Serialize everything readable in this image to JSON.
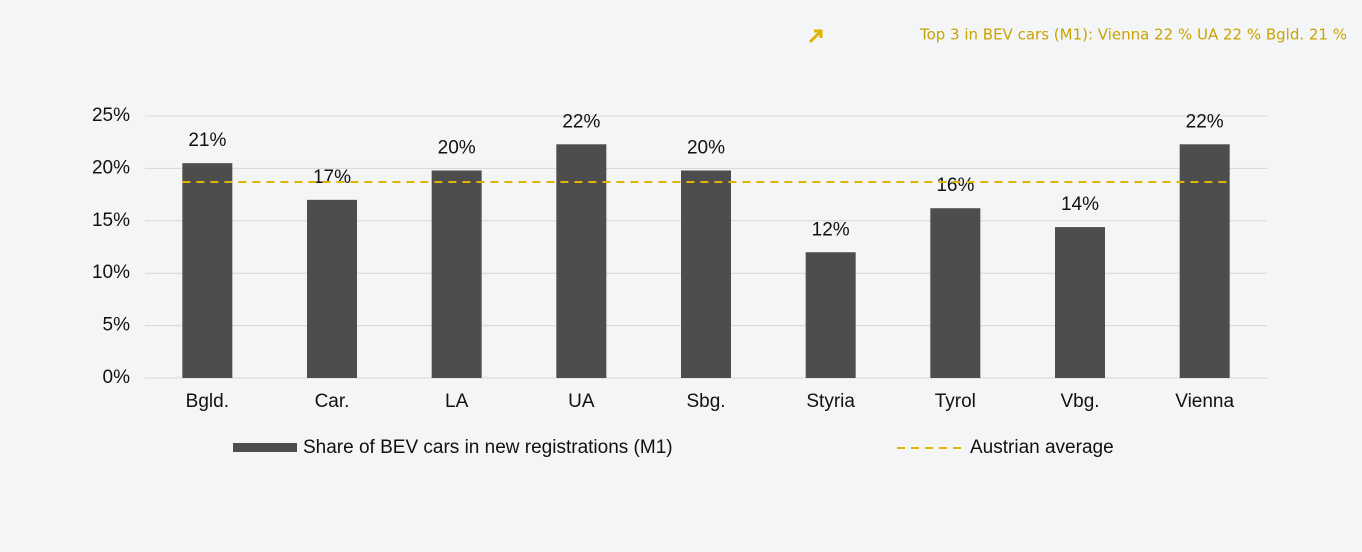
{
  "chart_data": {
    "type": "bar",
    "annotation": "Top 3 in BEV cars (M1): Vienna 22 % UA 22 % Bgld. 21 %",
    "categories": [
      "Bgld.",
      "Car.",
      "LA",
      "UA",
      "Sbg.",
      "Styria",
      "Tyrol",
      "Vbg.",
      "Vienna"
    ],
    "series": [
      {
        "name": "Share of BEV cars in new registrations (M1)",
        "color": "#4d4d4d",
        "values": [
          20.5,
          17.0,
          19.8,
          22.3,
          19.8,
          12.0,
          16.2,
          14.4,
          22.3
        ],
        "value_labels": [
          "21%",
          "17%",
          "20%",
          "22%",
          "20%",
          "12%",
          "16%",
          "14%",
          "22%"
        ]
      }
    ],
    "average": {
      "name": "Austrian average",
      "color": "#e0b400",
      "value": 18.7
    },
    "ylim": [
      0,
      25
    ],
    "yticks": [
      {
        "value": 0,
        "label": "0%"
      },
      {
        "value": 5,
        "label": "5%"
      },
      {
        "value": 10,
        "label": "10%"
      },
      {
        "value": 15,
        "label": "15%"
      },
      {
        "value": 20,
        "label": "20%"
      },
      {
        "value": 25,
        "label": "25%"
      }
    ],
    "grid": true
  }
}
